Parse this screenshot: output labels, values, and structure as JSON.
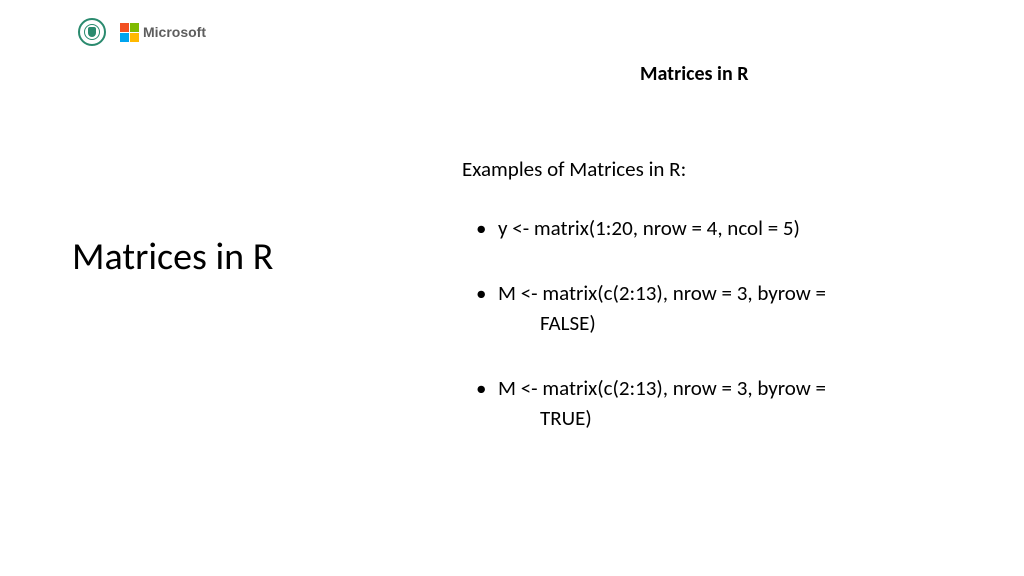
{
  "logos": {
    "seal_color": "#2a8a6e",
    "microsoft": {
      "text": "Microsoft",
      "text_color": "#5e5e5e",
      "squares": [
        "#f25022",
        "#7fba00",
        "#00a4ef",
        "#ffb900"
      ]
    }
  },
  "header": {
    "title": "Matrices in R"
  },
  "left": {
    "title": "Matrices in R"
  },
  "content": {
    "intro": "Examples of Matrices in R:",
    "bullets": [
      {
        "line1": "y <- matrix(1:20, nrow = 4, ncol = 5)",
        "line2": ""
      },
      {
        "line1": "M <- matrix(c(2:13), nrow = 3, byrow =",
        "line2": "FALSE)"
      },
      {
        "line1": "M <- matrix(c(2:13), nrow = 3, byrow =",
        "line2": "TRUE)"
      }
    ]
  },
  "styling": {
    "background": "#ffffff",
    "text_color": "#000000",
    "body_fontsize": 21,
    "title_fontsize": 38,
    "header_fontsize": 20
  }
}
